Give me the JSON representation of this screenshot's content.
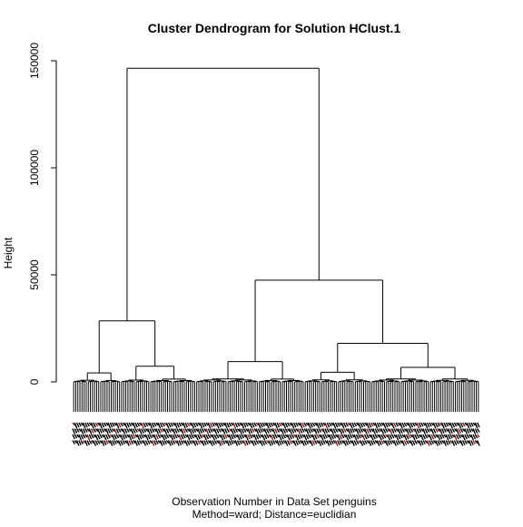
{
  "chart_data": {
    "type": "dendrogram",
    "title": "Cluster Dendrogram for Solution HClust.1",
    "ylabel": "Height",
    "xlabel_lines": [
      "Observation Number in Data Set penguins",
      "Method=ward; Distance=euclidian"
    ],
    "ylim": [
      0,
      150000
    ],
    "yticks": [
      0,
      50000,
      100000,
      150000
    ],
    "ytick_labels": [
      "0",
      "50000",
      "100000",
      "150000"
    ],
    "observation_count": 195,
    "leaf_drop_below_zero": 14000,
    "leaf_label_rows": 4,
    "leaf_label_color": "#000000",
    "accent_label_color": "#8b1a1a",
    "line_color": "#000000",
    "merges": [
      {
        "name": "root",
        "height": 146500,
        "left": "left-cluster",
        "right": "right-cluster"
      },
      {
        "name": "left-cluster",
        "height": 28500,
        "left": "left-a",
        "right": "left-b"
      },
      {
        "name": "left-a",
        "height": 4200,
        "left": "leaves:0-12",
        "right": "leaves:13-22"
      },
      {
        "name": "left-b",
        "height": 7300,
        "left": "leaves:23-36",
        "right": "leaves:37-58"
      },
      {
        "name": "right-cluster",
        "height": 47500,
        "left": "mid-cluster",
        "right": "far-cluster"
      },
      {
        "name": "mid-cluster",
        "height": 9500,
        "left": "leaves:59-88",
        "right": "leaves:89-110"
      },
      {
        "name": "far-cluster",
        "height": 18000,
        "left": "far-a",
        "right": "far-b"
      },
      {
        "name": "far-a",
        "height": 4500,
        "left": "leaves:111-126",
        "right": "leaves:127-142"
      },
      {
        "name": "far-b",
        "height": 6800,
        "left": "leaves:143-170",
        "right": "leaves:171-194"
      }
    ]
  }
}
